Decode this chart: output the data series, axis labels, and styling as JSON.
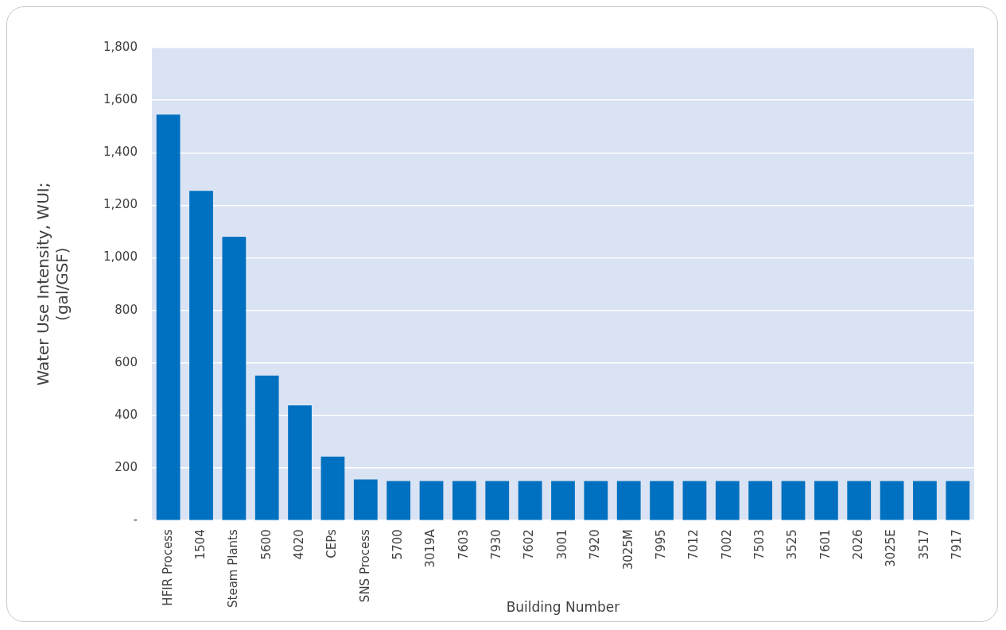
{
  "chart_data": {
    "type": "bar",
    "xlabel": "Building Number",
    "ylabel": "Water Use Intensity, WUI;\n(gal/GSF)",
    "categories": [
      "HFIR Process",
      "1504",
      "Steam Plants",
      "5600",
      "4020",
      "CEPs",
      "SNS Process",
      "5700",
      "3019A",
      "7603",
      "7930",
      "7602",
      "3001",
      "7920",
      "3025M",
      "7995",
      "7012",
      "7002",
      "7503",
      "3525",
      "7601",
      "2026",
      "3025E",
      "3517",
      "7917"
    ],
    "values": [
      1545,
      1255,
      1080,
      552,
      438,
      243,
      156,
      150,
      150,
      150,
      150,
      150,
      150,
      150,
      150,
      150,
      150,
      150,
      150,
      150,
      150,
      150,
      150,
      150,
      150
    ],
    "color": "#0070c0",
    "ylim": [
      0,
      1800
    ],
    "yticks": [
      {
        "value": 0,
        "label": "-"
      },
      200,
      400,
      600,
      800,
      {
        "value": 1000,
        "label": "1,000"
      },
      {
        "value": 1200,
        "label": "1,200"
      },
      {
        "value": 1400,
        "label": "1,400"
      },
      {
        "value": 1600,
        "label": "1,600"
      },
      {
        "value": 1800,
        "label": "1,800"
      }
    ],
    "grid": "y",
    "legend": false
  }
}
